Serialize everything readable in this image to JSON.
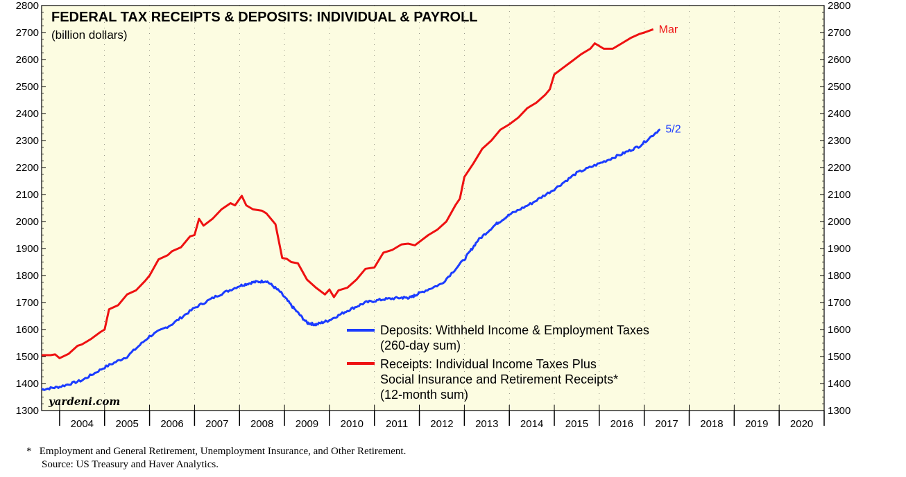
{
  "chart_data": {
    "type": "line",
    "title": "FEDERAL TAX RECEIPTS & DEPOSITS: INDIVIDUAL & PAYROLL",
    "subtitle": "(billion dollars)",
    "ylim": [
      1300,
      2800
    ],
    "y_ticks": [
      1300,
      1400,
      1500,
      1600,
      1700,
      1800,
      1900,
      2000,
      2100,
      2200,
      2300,
      2400,
      2500,
      2600,
      2700,
      2800
    ],
    "xlim": [
      2003.6,
      2021.0
    ],
    "year_labels": [
      "2004",
      "2005",
      "2006",
      "2007",
      "2008",
      "2009",
      "2010",
      "2011",
      "2012",
      "2013",
      "2014",
      "2015",
      "2016",
      "2017",
      "2018",
      "2019",
      "2020"
    ],
    "watermark": "yardeni.com",
    "background_color": "#fcfce1",
    "series": [
      {
        "name": "Deposits: Withheld Income & Employment Taxes",
        "name_line2": "(260-day sum)",
        "color": "#1b3cff",
        "end_label": "5/2",
        "x": [
          2003.6,
          2004.0,
          2004.5,
          2005.0,
          2005.5,
          2006.0,
          2006.5,
          2007.0,
          2007.5,
          2008.0,
          2008.3,
          2008.6,
          2008.9,
          2009.2,
          2009.5,
          2009.7,
          2010.0,
          2010.4,
          2010.8,
          2011.2,
          2011.6,
          2011.8,
          2012.0,
          2012.5,
          2013.0,
          2013.3,
          2013.7,
          2014.0,
          2014.5,
          2015.0,
          2015.5,
          2016.0,
          2016.5,
          2016.9,
          2017.35
        ],
        "values": [
          1378,
          1388,
          1412,
          1460,
          1500,
          1575,
          1620,
          1680,
          1725,
          1762,
          1775,
          1780,
          1740,
          1680,
          1625,
          1618,
          1635,
          1670,
          1700,
          1712,
          1718,
          1718,
          1735,
          1770,
          1860,
          1930,
          1990,
          2025,
          2068,
          2120,
          2180,
          2215,
          2250,
          2280,
          2342
        ]
      },
      {
        "name": "Receipts: Individual Income Taxes Plus",
        "name_line2": "Social Insurance and Retirement Receipts*",
        "name_line3": "(12-month sum)",
        "color": "#ee1111",
        "end_label": "Mar",
        "x": [
          2003.6,
          2003.8,
          2003.9,
          2004.0,
          2004.2,
          2004.4,
          2004.5,
          2004.7,
          2004.9,
          2005.0,
          2005.1,
          2005.3,
          2005.5,
          2005.7,
          2005.9,
          2006.0,
          2006.2,
          2006.4,
          2006.5,
          2006.7,
          2006.9,
          2007.0,
          2007.1,
          2007.2,
          2007.4,
          2007.6,
          2007.8,
          2007.9,
          2008.05,
          2008.15,
          2008.3,
          2008.5,
          2008.6,
          2008.8,
          2008.95,
          2009.05,
          2009.15,
          2009.3,
          2009.5,
          2009.7,
          2009.9,
          2010.0,
          2010.1,
          2010.2,
          2010.4,
          2010.6,
          2010.8,
          2011.0,
          2011.2,
          2011.4,
          2011.6,
          2011.75,
          2011.9,
          2012.0,
          2012.2,
          2012.4,
          2012.6,
          2012.8,
          2012.9,
          2013.0,
          2013.2,
          2013.4,
          2013.6,
          2013.8,
          2014.0,
          2014.2,
          2014.4,
          2014.6,
          2014.8,
          2014.9,
          2015.0,
          2015.2,
          2015.4,
          2015.6,
          2015.8,
          2015.9,
          2016.1,
          2016.3,
          2016.5,
          2016.7,
          2016.9,
          2017.0,
          2017.2
        ],
        "values": [
          1505,
          1505,
          1508,
          1494,
          1510,
          1540,
          1545,
          1565,
          1590,
          1600,
          1675,
          1690,
          1730,
          1745,
          1780,
          1800,
          1860,
          1875,
          1890,
          1905,
          1945,
          1950,
          2010,
          1985,
          2010,
          2045,
          2068,
          2060,
          2095,
          2060,
          2045,
          2040,
          2030,
          1990,
          1865,
          1862,
          1850,
          1845,
          1785,
          1755,
          1730,
          1748,
          1720,
          1745,
          1755,
          1785,
          1825,
          1830,
          1885,
          1895,
          1915,
          1918,
          1912,
          1925,
          1950,
          1970,
          2000,
          2060,
          2085,
          2165,
          2215,
          2270,
          2300,
          2340,
          2360,
          2385,
          2420,
          2440,
          2470,
          2490,
          2545,
          2570,
          2595,
          2620,
          2640,
          2660,
          2640,
          2640,
          2660,
          2680,
          2695,
          2700,
          2712
        ]
      }
    ],
    "footnote": "Employment and General Retirement, Unemployment Insurance, and Other Retirement.",
    "footnote_marker": "*",
    "source": "Source: US Treasury and Haver Analytics."
  }
}
